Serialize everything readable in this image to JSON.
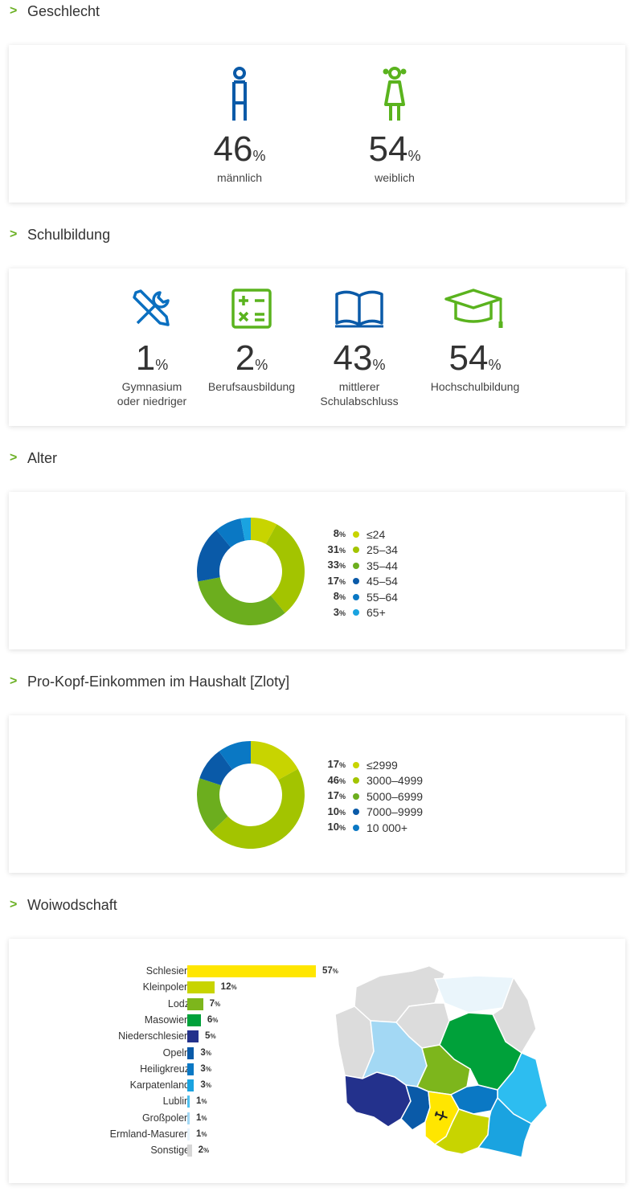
{
  "sections": {
    "gender": "Geschlecht",
    "education": "Schulbildung",
    "age": "Alter",
    "income": "Pro-Kopf-Einkommen im Haushalt [Zloty]",
    "region": "Woiwodschaft"
  },
  "pct_sign": "%",
  "gender": [
    {
      "value": "46",
      "label": "männlich",
      "color": "#0a5aa8"
    },
    {
      "value": "54",
      "label": "weiblich",
      "color": "#5ab31e"
    }
  ],
  "education": [
    {
      "value": "1",
      "label_line1": "Gymnasium",
      "label_line2": "oder niedriger",
      "icon": "tools-icon",
      "color": "#0a6fc0"
    },
    {
      "value": "2",
      "label_line1": "Berufsausbildung",
      "label_line2": "",
      "icon": "calculator-icon",
      "color": "#5ab31e"
    },
    {
      "value": "43",
      "label_line1": "mittlerer",
      "label_line2": "Schulabschluss",
      "icon": "book-icon",
      "color": "#0a5aa8"
    },
    {
      "value": "54",
      "label_line1": "Hochschulbildung",
      "label_line2": "",
      "icon": "graduation-cap-icon",
      "color": "#5ab31e"
    }
  ],
  "chart_data": [
    {
      "type": "pie",
      "donut": true,
      "categories": [
        "≤24",
        "25–34",
        "35–44",
        "45–54",
        "55–64",
        "65+"
      ],
      "values": [
        8,
        31,
        33,
        17,
        8,
        3
      ],
      "colors": [
        "#c8d400",
        "#a3c400",
        "#6cae1e",
        "#0a5aa8",
        "#0a78c4",
        "#1aa3e0"
      ]
    },
    {
      "type": "pie",
      "donut": true,
      "categories": [
        "≤2999",
        "3000–4999",
        "5000–6999",
        "7000–9999",
        "10 000+"
      ],
      "values": [
        17,
        46,
        17,
        10,
        10
      ],
      "colors": [
        "#c8d400",
        "#a3c400",
        "#6cae1e",
        "#0a5aa8",
        "#0a78c4"
      ]
    },
    {
      "type": "bar",
      "orientation": "horizontal",
      "categories": [
        "Schlesien",
        "Kleinpolen",
        "Lodz",
        "Masowien",
        "Niederschlesien",
        "Opeln",
        "Heiligkreuz",
        "Karpatenland",
        "Lublin",
        "Großpolen",
        "Ermland-Masuren",
        "Sonstige"
      ],
      "values": [
        57,
        12,
        7,
        6,
        5,
        3,
        3,
        3,
        1,
        1,
        1,
        2
      ],
      "colors": [
        "#ffe600",
        "#c8d400",
        "#7db61c",
        "#00a13a",
        "#23318c",
        "#0a5aa8",
        "#0a78c4",
        "#1aa3e0",
        "#4fc0ef",
        "#a3d8f4",
        "#e6f3fb",
        "#d6d6d6"
      ]
    }
  ]
}
